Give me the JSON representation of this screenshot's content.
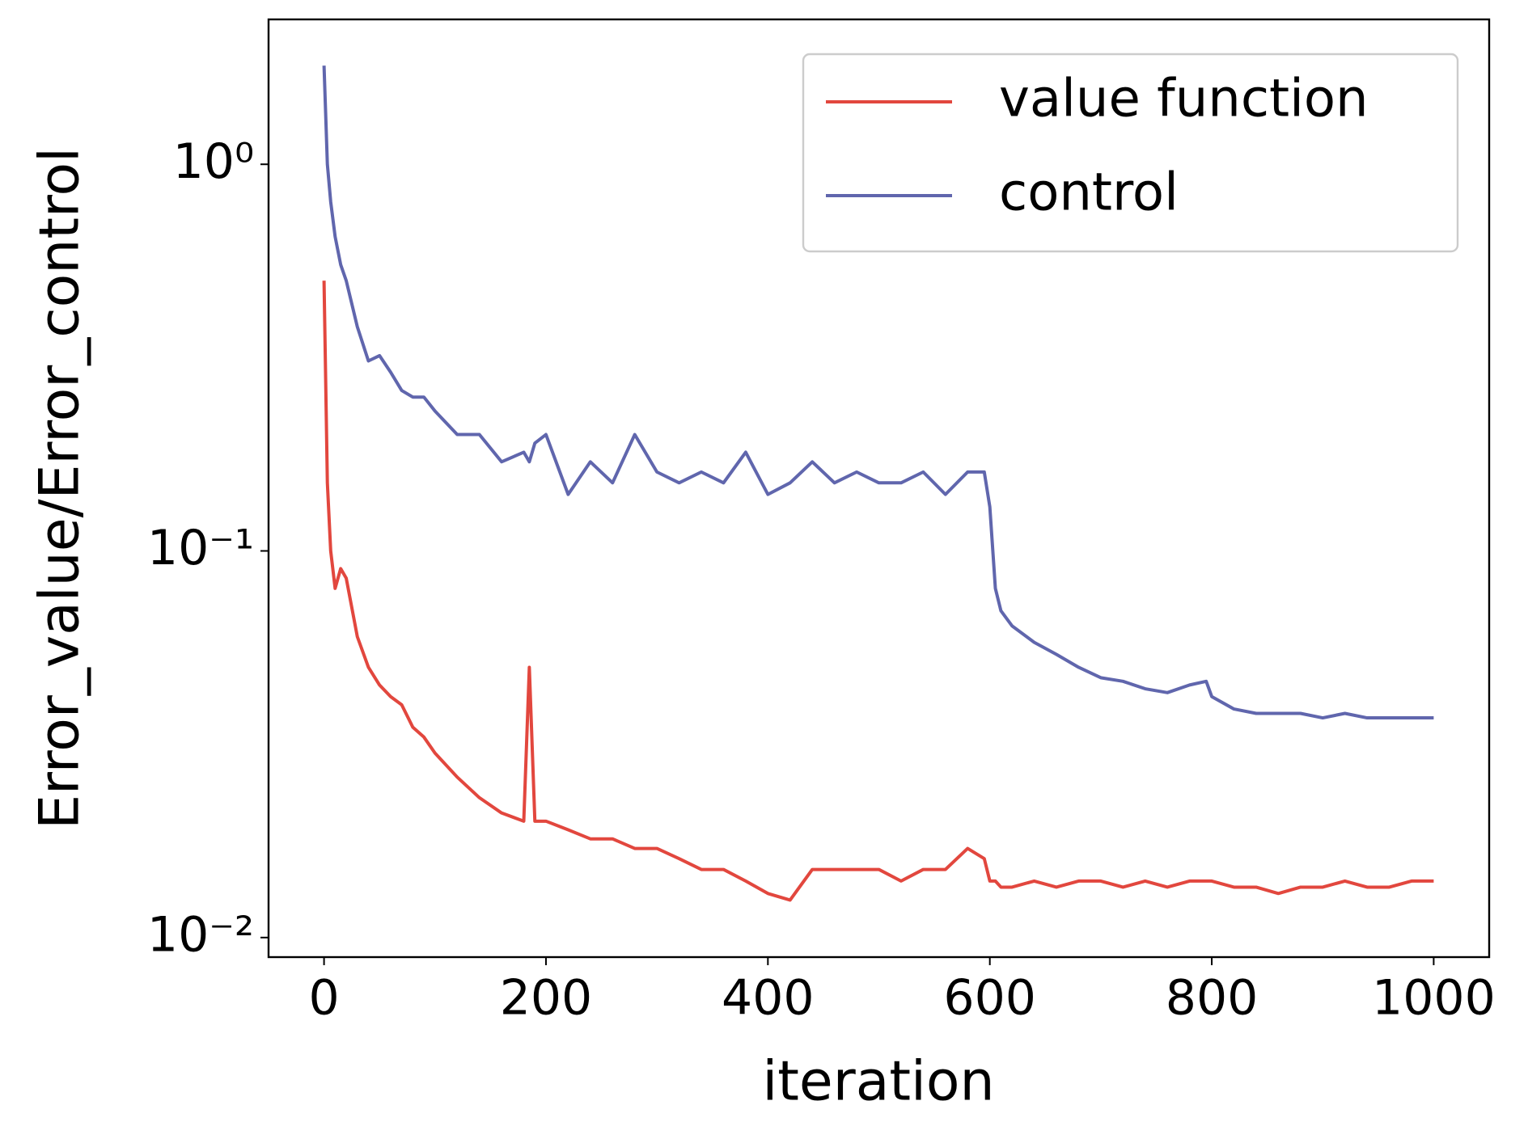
{
  "chart_data": {
    "type": "line",
    "xlabel": "iteration",
    "ylabel": "Error_value/Error_control",
    "log_y": true,
    "legend": "upper right",
    "xlim": [
      -50,
      1050
    ],
    "ylim": [
      0.0089,
      2.37
    ],
    "xticks": [
      0,
      200,
      400,
      600,
      800,
      1000
    ],
    "yticks": [
      {
        "value": 0.01,
        "label": "10⁻²"
      },
      {
        "value": 0.1,
        "label": "10⁻¹"
      },
      {
        "value": 1,
        "label": "10⁰"
      }
    ],
    "x": [
      0,
      3,
      6,
      10,
      15,
      20,
      30,
      40,
      50,
      60,
      70,
      80,
      90,
      100,
      120,
      140,
      160,
      180,
      185,
      190,
      200,
      220,
      240,
      260,
      280,
      300,
      320,
      340,
      360,
      380,
      400,
      420,
      440,
      460,
      480,
      500,
      520,
      540,
      560,
      580,
      595,
      600,
      605,
      610,
      620,
      640,
      660,
      680,
      700,
      720,
      740,
      760,
      780,
      795,
      800,
      820,
      840,
      860,
      880,
      900,
      920,
      940,
      960,
      980,
      1000
    ],
    "series": [
      {
        "name": "value function",
        "color": "#e2473e",
        "values": [
          0.5,
          0.15,
          0.1,
          0.08,
          0.09,
          0.085,
          0.06,
          0.05,
          0.045,
          0.042,
          0.04,
          0.035,
          0.033,
          0.03,
          0.026,
          0.023,
          0.021,
          0.02,
          0.05,
          0.02,
          0.02,
          0.019,
          0.018,
          0.018,
          0.017,
          0.017,
          0.016,
          0.015,
          0.015,
          0.014,
          0.013,
          0.0125,
          0.015,
          0.015,
          0.015,
          0.015,
          0.014,
          0.015,
          0.015,
          0.017,
          0.016,
          0.014,
          0.014,
          0.0135,
          0.0135,
          0.014,
          0.0135,
          0.014,
          0.014,
          0.0135,
          0.014,
          0.0135,
          0.014,
          0.014,
          0.014,
          0.0135,
          0.0135,
          0.013,
          0.0135,
          0.0135,
          0.014,
          0.0135,
          0.0135,
          0.014,
          0.014
        ]
      },
      {
        "name": "control",
        "color": "#6066ad",
        "values": [
          1.8,
          1.0,
          0.8,
          0.65,
          0.55,
          0.5,
          0.38,
          0.31,
          0.32,
          0.29,
          0.26,
          0.25,
          0.25,
          0.23,
          0.2,
          0.2,
          0.17,
          0.18,
          0.17,
          0.19,
          0.2,
          0.14,
          0.17,
          0.15,
          0.2,
          0.16,
          0.15,
          0.16,
          0.15,
          0.18,
          0.14,
          0.15,
          0.17,
          0.15,
          0.16,
          0.15,
          0.15,
          0.16,
          0.14,
          0.16,
          0.16,
          0.13,
          0.08,
          0.07,
          0.064,
          0.058,
          0.054,
          0.05,
          0.047,
          0.046,
          0.044,
          0.043,
          0.045,
          0.046,
          0.042,
          0.039,
          0.038,
          0.038,
          0.038,
          0.037,
          0.038,
          0.037,
          0.037,
          0.037,
          0.037
        ]
      }
    ]
  }
}
